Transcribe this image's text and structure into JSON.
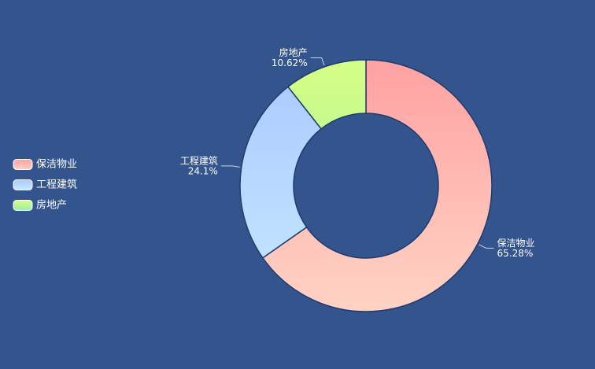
{
  "chart_data": {
    "type": "pie",
    "categories": [
      "保洁物业",
      "工程建筑",
      "房地产"
    ],
    "values": [
      65.28,
      24.1,
      10.62
    ],
    "value_labels": [
      "65.28%",
      "24.1%",
      "10.62%"
    ],
    "gradients": [
      [
        "#ffa2a2",
        "#ffd3c4"
      ],
      [
        "#a9c9ff",
        "#c7e9ff"
      ],
      [
        "#d6ff84",
        "#9eecaa"
      ]
    ],
    "legend": "left"
  }
}
